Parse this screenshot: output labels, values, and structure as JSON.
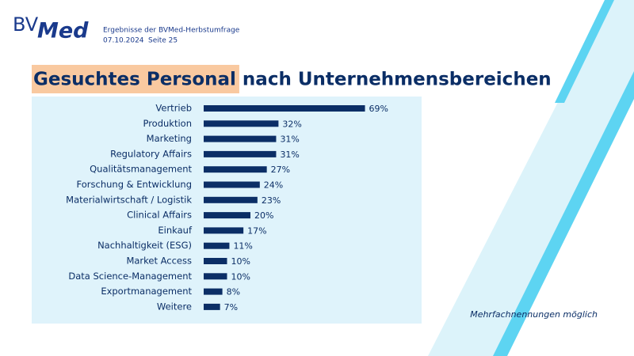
{
  "slide": {
    "logo": [
      "BV",
      "Med"
    ],
    "header": [
      "Ergebnisse der BVMed-Herbstumfrage",
      "07.10.2024",
      "Seite 25"
    ],
    "title_highlight": "Gesuchtes Personal",
    "title": "nach Unternehmensbereichen",
    "note": "Mehrfachnennungen möglich"
  },
  "chart_data": {
    "type": "bar",
    "orientation": "horizontal",
    "color": "#0b2e66",
    "categories": [
      "Vertrieb",
      "Produktion",
      "Marketing",
      "Regulatory Affairs",
      "Qualitätsmanagement",
      "Forschung & Entwicklung",
      "Materialwirtschaft / Logistik",
      "Clinical Affairs",
      "Einkauf",
      "Nachhaltigkeit (ESG)",
      "Market Access",
      "Data Science-Management",
      "Exportmanagement",
      "Weitere"
    ],
    "values": [
      69,
      32,
      31,
      31,
      27,
      24,
      23,
      20,
      17,
      11,
      10,
      10,
      8,
      7
    ],
    "value_labels": [
      "69%",
      "32%",
      "31%",
      "31%",
      "27%",
      "24%",
      "23%",
      "20%",
      "17%",
      "11%",
      "10%",
      "10%",
      "8%",
      "7%"
    ]
  }
}
